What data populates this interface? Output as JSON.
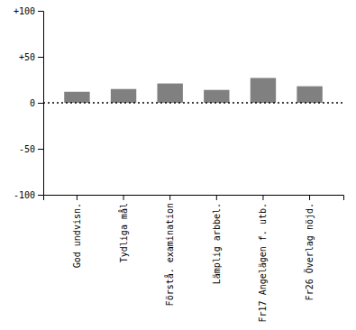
{
  "chart_data": {
    "type": "bar",
    "categories": [
      "God undvisn.",
      "Tydliga mål",
      "Förstå. examination",
      "Lämplig arbbel.",
      "Fr17 Angelägen f. utb.",
      "Fr26 Överlag nöjd."
    ],
    "values": [
      12,
      15,
      21,
      14,
      27,
      18
    ],
    "color": "#808080",
    "ylim": [
      -100,
      100
    ],
    "yticks": [
      -100,
      -50,
      0,
      {
        "value": 50,
        "label": "+50"
      },
      {
        "value": 100,
        "label": "+100"
      }
    ],
    "grid": false
  }
}
